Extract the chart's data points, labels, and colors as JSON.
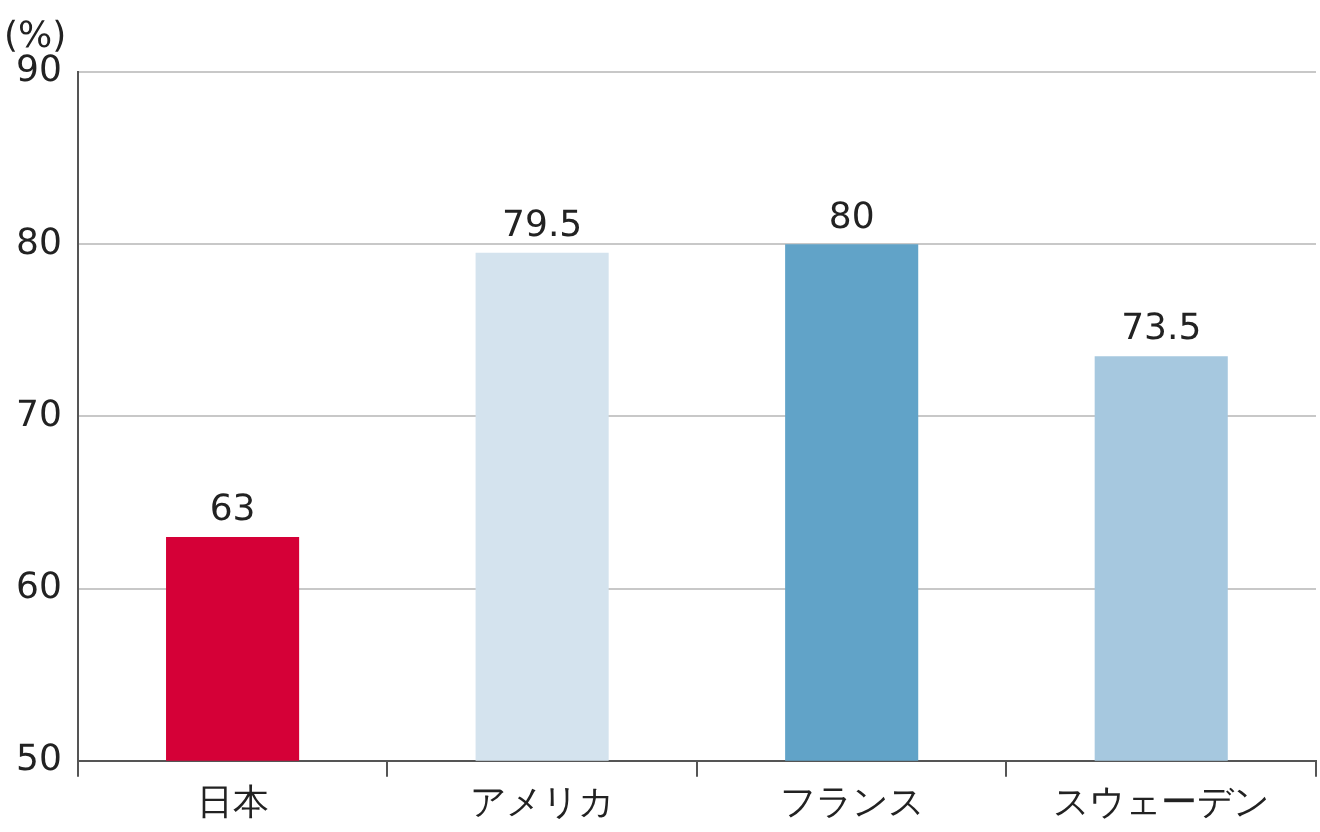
{
  "chart_data": {
    "type": "bar",
    "ylabel": "(%)",
    "categories": [
      "日本",
      "アメリカ",
      "フランス",
      "スウェーデン"
    ],
    "values": [
      63,
      79.5,
      80,
      73.5
    ],
    "colors": [
      "#d50037",
      "#d4e3ee",
      "#61a3c8",
      "#a6c8df"
    ],
    "ylim": [
      50,
      90
    ],
    "yticks": [
      50,
      60,
      70,
      80,
      90
    ],
    "grid": "y",
    "data_labels": true
  }
}
